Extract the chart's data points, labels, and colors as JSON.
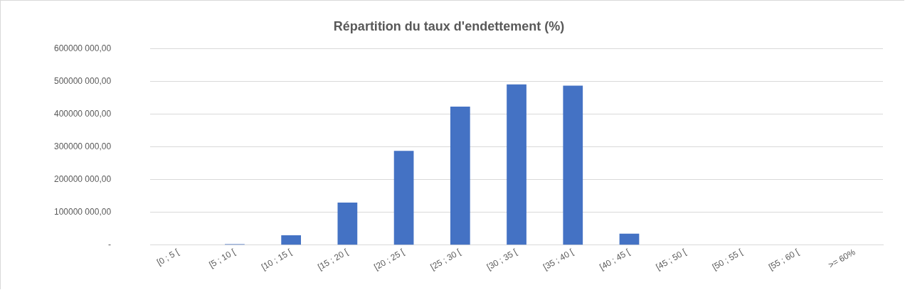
{
  "chart_data": {
    "type": "bar",
    "title": "Répartition du taux d'endettement (%)",
    "categories": [
      "[0 ; 5 [",
      "[5 ; 10 [",
      "[10 ; 15 [",
      "[15 ; 20 [",
      "[20 ; 25 [",
      "[25 ; 30 [",
      "[30 ; 35 [",
      "[35 ; 40 [",
      "[40 ; 45 [",
      "[45 ; 50 [",
      "[50 ; 55 [",
      "[55 ; 60 [",
      ">= 60%"
    ],
    "values": [
      0,
      3000000,
      30000000,
      130000000,
      288000000,
      423000000,
      491000000,
      487000000,
      35000000,
      1000000,
      0,
      0,
      0
    ],
    "color": "#4472c4",
    "ylim": [
      0,
      600000000
    ],
    "yticks": [
      {
        "value": 0,
        "label": "-"
      },
      {
        "value": 100000000,
        "label": "100000 000,00"
      },
      {
        "value": 200000000,
        "label": "200000 000,00"
      },
      {
        "value": 300000000,
        "label": "300000 000,00"
      },
      {
        "value": 400000000,
        "label": "400000 000,00"
      },
      {
        "value": 500000000,
        "label": "500000 000,00"
      },
      {
        "value": 600000000,
        "label": "600000 000,00"
      }
    ],
    "grid": "y",
    "legend": false
  }
}
